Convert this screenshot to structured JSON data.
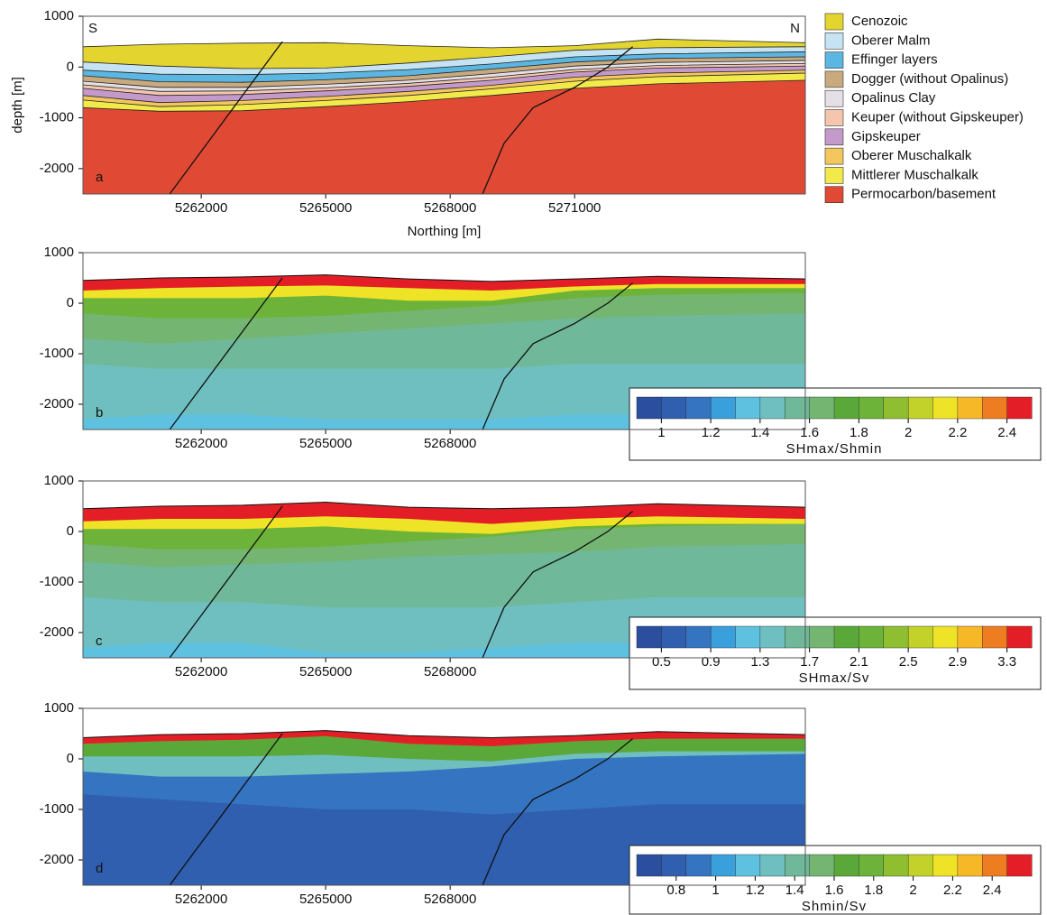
{
  "chart_data": [
    {
      "type": "section",
      "panel_label": "a",
      "left_label": "S",
      "right_label": "N",
      "ylabel": "depth [m]",
      "xlabel": "Northing [m]",
      "xlim": [
        5259150,
        5276560
      ],
      "xticks": [
        5262000,
        5265000,
        5268000,
        5271000
      ],
      "ylim": [
        -2500,
        1000
      ],
      "yticks": [
        1000,
        0,
        -1000,
        -2000
      ],
      "x": [
        5259150,
        5261000,
        5263000,
        5265000,
        5267000,
        5269000,
        5271000,
        5273000,
        5276560
      ],
      "layers": [
        {
          "name": "Cenozoic",
          "color": "#e3d430",
          "values": [
            400,
            450,
            470,
            480,
            420,
            380,
            420,
            550,
            480
          ]
        },
        {
          "name": "Oberer Malm",
          "color": "#c5e3f2",
          "values": [
            100,
            20,
            -30,
            -20,
            80,
            200,
            330,
            380,
            400
          ]
        },
        {
          "name": "Effinger layers",
          "color": "#5bb6e2",
          "values": [
            -60,
            -140,
            -150,
            -120,
            -50,
            60,
            200,
            260,
            300
          ]
        },
        {
          "name": "Dogger (without Opalinus)",
          "color": "#c8aa7e",
          "values": [
            -170,
            -290,
            -300,
            -250,
            -170,
            -40,
            100,
            170,
            200
          ]
        },
        {
          "name": "Opalinus Clay",
          "color": "#e4e0e6",
          "values": [
            -280,
            -400,
            -400,
            -340,
            -260,
            -130,
            20,
            90,
            130
          ]
        },
        {
          "name": "Keuper (without Gipskeuper)",
          "color": "#f5c6ad",
          "values": [
            -350,
            -480,
            -470,
            -410,
            -320,
            -200,
            -50,
            30,
            70
          ]
        },
        {
          "name": "Gipskeuper",
          "color": "#c39ac9",
          "values": [
            -420,
            -560,
            -540,
            -470,
            -380,
            -260,
            -100,
            -20,
            20
          ]
        },
        {
          "name": "Oberer Muschalkalk",
          "color": "#f3c75e",
          "values": [
            -560,
            -700,
            -660,
            -580,
            -480,
            -360,
            -200,
            -120,
            -60
          ]
        },
        {
          "name": "Mittlerer Muschalkalk",
          "color": "#f2e94a",
          "values": [
            -650,
            -780,
            -740,
            -660,
            -560,
            -430,
            -280,
            -190,
            -120
          ]
        },
        {
          "name": "Permocarbon/basement",
          "color": "#e04a35",
          "values": [
            -800,
            -870,
            -860,
            -780,
            -680,
            -560,
            -420,
            -330,
            -260
          ]
        }
      ],
      "faults": [
        {
          "x": [
            5261240,
            5263955
          ],
          "y": [
            -2500,
            500
          ]
        },
        {
          "x": [
            5268780,
            5269300,
            5270000,
            5271000,
            5271800,
            5272400
          ],
          "y": [
            -2500,
            -1500,
            -800,
            -400,
            0,
            400
          ]
        }
      ]
    },
    {
      "type": "field",
      "panel_label": "b",
      "xlim": [
        5259150,
        5276560
      ],
      "xticks": [
        5262000,
        5265000,
        5268000
      ],
      "ylim": [
        -2500,
        1000
      ],
      "yticks": [
        1000,
        0,
        -1000,
        -2000
      ],
      "x": [
        5259150,
        5261000,
        5263000,
        5265000,
        5267000,
        5269000,
        5271000,
        5273000,
        5276560
      ],
      "bands": [
        {
          "value": 2.45,
          "values": [
            450,
            500,
            520,
            560,
            480,
            430,
            480,
            530,
            480
          ]
        },
        {
          "value": 2.15,
          "values": [
            250,
            300,
            330,
            350,
            300,
            250,
            330,
            380,
            380
          ]
        },
        {
          "value": 1.85,
          "values": [
            100,
            100,
            100,
            150,
            50,
            50,
            250,
            300,
            300
          ]
        },
        {
          "value": 1.65,
          "values": [
            -200,
            -300,
            -300,
            -250,
            -150,
            -50,
            100,
            170,
            200
          ]
        },
        {
          "value": 1.55,
          "values": [
            -700,
            -800,
            -700,
            -600,
            -500,
            -400,
            -300,
            -250,
            -200
          ]
        },
        {
          "value": 1.45,
          "values": [
            -1200,
            -1300,
            -1300,
            -1300,
            -1300,
            -1300,
            -1200,
            -1200,
            -1200
          ]
        },
        {
          "value": 1.35,
          "values": [
            -2300,
            -2200,
            -2200,
            -2300,
            -2300,
            -2300,
            -2200,
            -2200,
            -2200
          ]
        }
      ],
      "faults": [
        {
          "x": [
            5261240,
            5263955
          ],
          "y": [
            -2500,
            500
          ]
        },
        {
          "x": [
            5268780,
            5269300,
            5270000,
            5271000,
            5271800,
            5272400
          ],
          "y": [
            -2500,
            -1500,
            -800,
            -400,
            0,
            400
          ]
        }
      ],
      "colorbar": {
        "label": "SHmax/Shmin",
        "clim": [
          0.9,
          2.5
        ],
        "ticks": [
          1,
          1.2,
          1.4,
          1.6,
          1.8,
          2,
          2.2,
          2.4
        ],
        "colors": [
          "#2b4f9e",
          "#2f5fae",
          "#3574c0",
          "#3aa0dc",
          "#5ec1e0",
          "#70bfc0",
          "#6fb99a",
          "#73b571",
          "#5ba83a",
          "#6db33a",
          "#8fbf30",
          "#c3d22a",
          "#eee327",
          "#f7b827",
          "#ee7d22",
          "#e41e26"
        ]
      }
    },
    {
      "type": "field",
      "panel_label": "c",
      "xlim": [
        5259150,
        5276560
      ],
      "xticks": [
        5262000,
        5265000,
        5268000
      ],
      "ylim": [
        -2500,
        1000
      ],
      "yticks": [
        1000,
        0,
        -1000,
        -2000
      ],
      "x": [
        5259150,
        5261000,
        5263000,
        5265000,
        5267000,
        5269000,
        5271000,
        5273000,
        5276560
      ],
      "bands": [
        {
          "value": 3.4,
          "values": [
            450,
            500,
            520,
            580,
            480,
            450,
            480,
            550,
            480
          ]
        },
        {
          "value": 2.8,
          "values": [
            200,
            250,
            250,
            300,
            250,
            150,
            250,
            300,
            250
          ]
        },
        {
          "value": 2.3,
          "values": [
            50,
            50,
            50,
            100,
            0,
            -50,
            100,
            150,
            150
          ]
        },
        {
          "value": 1.9,
          "values": [
            -250,
            -350,
            -350,
            -300,
            -200,
            -100,
            50,
            100,
            150
          ]
        },
        {
          "value": 1.7,
          "values": [
            -600,
            -700,
            -650,
            -600,
            -500,
            -450,
            -400,
            -300,
            -250
          ]
        },
        {
          "value": 1.3,
          "values": [
            -1300,
            -1400,
            -1400,
            -1500,
            -1500,
            -1500,
            -1400,
            -1300,
            -1300
          ]
        },
        {
          "value": 1.1,
          "values": [
            -2300,
            -2200,
            -2200,
            -2400,
            -2400,
            -2300,
            -2200,
            -2200,
            -2200
          ]
        }
      ],
      "faults": [
        {
          "x": [
            5261240,
            5263955
          ],
          "y": [
            -2500,
            500
          ]
        },
        {
          "x": [
            5268780,
            5269300,
            5270000,
            5271000,
            5271800,
            5272400
          ],
          "y": [
            -2500,
            -1500,
            -800,
            -400,
            0,
            400
          ]
        }
      ],
      "colorbar": {
        "label": "SHmax/Sv",
        "clim": [
          0.3,
          3.5
        ],
        "ticks": [
          0.5,
          0.9,
          1.3,
          1.7,
          2.1,
          2.5,
          2.9,
          3.3
        ],
        "colors": [
          "#2b4f9e",
          "#2f5fae",
          "#3574c0",
          "#3aa0dc",
          "#5ec1e0",
          "#70bfc0",
          "#6fb99a",
          "#73b571",
          "#5ba83a",
          "#6db33a",
          "#8fbf30",
          "#c3d22a",
          "#eee327",
          "#f7b827",
          "#ee7d22",
          "#e41e26"
        ]
      }
    },
    {
      "type": "field",
      "panel_label": "d",
      "xlim": [
        5259150,
        5276560
      ],
      "xticks": [
        5262000,
        5265000,
        5268000
      ],
      "ylim": [
        -2500,
        1000
      ],
      "yticks": [
        1000,
        0,
        -1000,
        -2000
      ],
      "x": [
        5259150,
        5261000,
        5263000,
        5265000,
        5267000,
        5269000,
        5271000,
        5273000,
        5276560
      ],
      "bands": [
        {
          "value": 2.5,
          "values": [
            420,
            480,
            500,
            560,
            460,
            420,
            460,
            540,
            480
          ]
        },
        {
          "value": 1.7,
          "values": [
            300,
            350,
            380,
            450,
            300,
            250,
            350,
            400,
            400
          ]
        },
        {
          "value": 1.3,
          "values": [
            50,
            50,
            50,
            80,
            0,
            -50,
            100,
            150,
            150
          ]
        },
        {
          "value": 0.95,
          "values": [
            -250,
            -350,
            -350,
            -300,
            -250,
            -150,
            0,
            50,
            100
          ]
        },
        {
          "value": 0.75,
          "values": [
            -700,
            -800,
            -900,
            -1000,
            -1000,
            -1100,
            -1000,
            -900,
            -900
          ]
        }
      ],
      "faults": [
        {
          "x": [
            5261240,
            5263955
          ],
          "y": [
            -2500,
            500
          ]
        },
        {
          "x": [
            5268780,
            5269300,
            5270000,
            5271000,
            5271800,
            5272400
          ],
          "y": [
            -2500,
            -1500,
            -800,
            -400,
            0,
            400
          ]
        }
      ],
      "colorbar": {
        "label": "Shmin/Sv",
        "clim": [
          0.6,
          2.6
        ],
        "ticks": [
          0.8,
          1,
          1.2,
          1.4,
          1.6,
          1.8,
          2,
          2.2,
          2.4
        ],
        "colors": [
          "#2b4f9e",
          "#2f5fae",
          "#3574c0",
          "#3aa0dc",
          "#5ec1e0",
          "#70bfc0",
          "#6fb99a",
          "#73b571",
          "#5ba83a",
          "#6db33a",
          "#8fbf30",
          "#c3d22a",
          "#eee327",
          "#f7b827",
          "#ee7d22",
          "#e41e26"
        ]
      }
    }
  ]
}
